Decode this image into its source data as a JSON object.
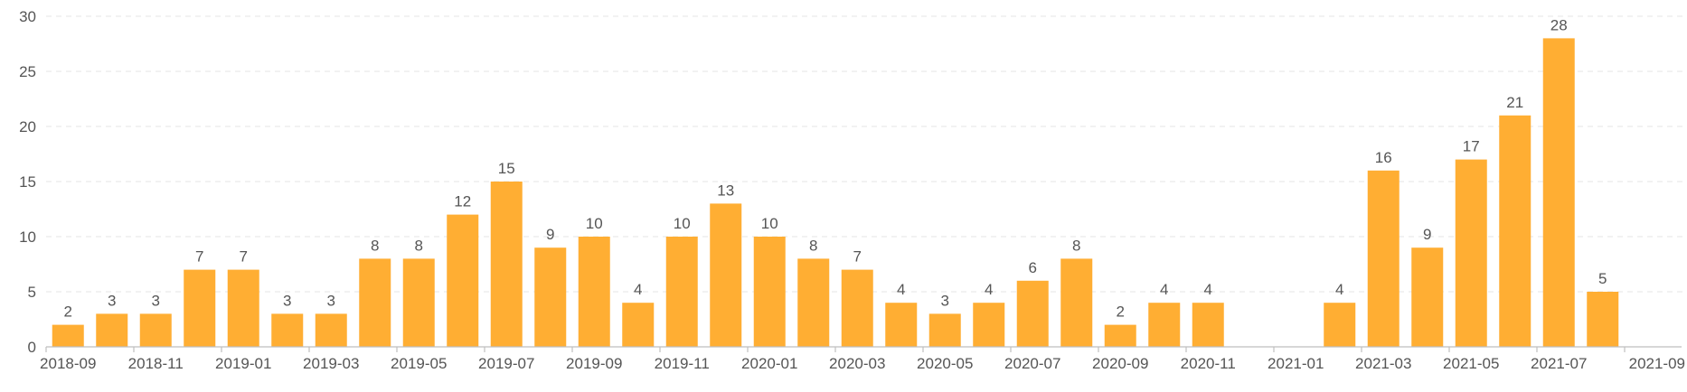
{
  "chart_data": {
    "type": "bar",
    "title": "",
    "xlabel": "",
    "ylabel": "",
    "ylim": [
      0,
      30
    ],
    "y_ticks": [
      0,
      5,
      10,
      15,
      20,
      25,
      30
    ],
    "grid": true,
    "colors": {
      "bar": "#FFAE33",
      "grid": "#E6E6E6",
      "axis": "#BFBFBF",
      "text": "#555555"
    },
    "categories": [
      "2018-09",
      "2018-10",
      "2018-11",
      "2018-12",
      "2019-01",
      "2019-02",
      "2019-03",
      "2019-04",
      "2019-05",
      "2019-06",
      "2019-07",
      "2019-08",
      "2019-09",
      "2019-10",
      "2019-11",
      "2019-12",
      "2020-01",
      "2020-02",
      "2020-03",
      "2020-04",
      "2020-05",
      "2020-06",
      "2020-07",
      "2020-08",
      "2020-09",
      "2020-10",
      "2020-11",
      "2020-12",
      "2021-01",
      "2021-02",
      "2021-03",
      "2021-04",
      "2021-05",
      "2021-06",
      "2021-07",
      "2021-08",
      "2021-09"
    ],
    "values": [
      2,
      3,
      3,
      7,
      7,
      3,
      3,
      8,
      8,
      12,
      15,
      9,
      10,
      4,
      10,
      13,
      10,
      8,
      7,
      4,
      3,
      4,
      6,
      8,
      2,
      4,
      4,
      null,
      null,
      4,
      16,
      9,
      17,
      21,
      28,
      5,
      null
    ],
    "x_tick_labels": [
      "2018-09",
      "2018-11",
      "2019-01",
      "2019-03",
      "2019-05",
      "2019-07",
      "2019-09",
      "2019-11",
      "2020-01",
      "2020-03",
      "2020-05",
      "2020-07",
      "2020-09",
      "2020-11",
      "2021-01",
      "2021-03",
      "2021-05",
      "2021-07",
      "2021-09"
    ]
  }
}
